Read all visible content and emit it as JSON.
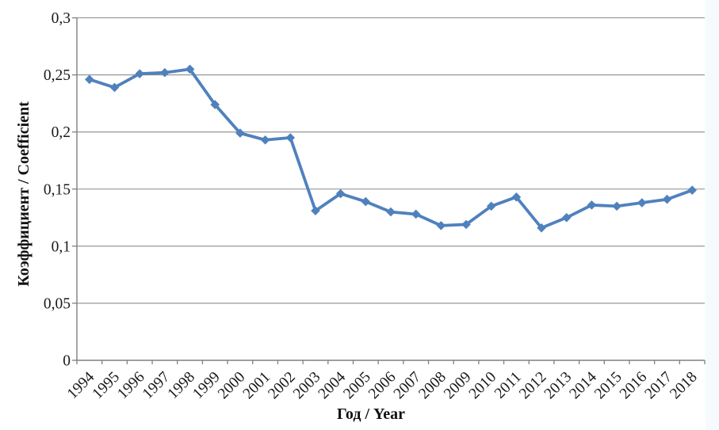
{
  "page": {
    "background": "#FFFFFF",
    "right_edge_tint": "#F5FAFD"
  },
  "chart_data": {
    "type": "line",
    "title": "",
    "xlabel": "Год / Year",
    "ylabel": "Коэффициент / Coefficient",
    "x": [
      "1994",
      "1995",
      "1996",
      "1997",
      "1998",
      "1999",
      "2000",
      "2001",
      "2002",
      "2003",
      "2004",
      "2005",
      "2006",
      "2007",
      "2008",
      "2009",
      "2010",
      "2011",
      "2012",
      "2013",
      "2014",
      "2015",
      "2016",
      "2017",
      "2018"
    ],
    "values": [
      0.246,
      0.239,
      0.251,
      0.252,
      0.255,
      0.224,
      0.199,
      0.193,
      0.195,
      0.131,
      0.146,
      0.139,
      0.13,
      0.128,
      0.118,
      0.119,
      0.135,
      0.143,
      0.116,
      0.125,
      0.136,
      0.135,
      0.138,
      0.141,
      0.149
    ],
    "ylim": [
      0,
      0.3
    ],
    "yticks": [
      {
        "value": 0,
        "label": "0"
      },
      {
        "value": 0.05,
        "label": "0,05"
      },
      {
        "value": 0.1,
        "label": "0,1"
      },
      {
        "value": 0.15,
        "label": "0,15"
      },
      {
        "value": 0.2,
        "label": "0,2"
      },
      {
        "value": 0.25,
        "label": "0,25"
      },
      {
        "value": 0.3,
        "label": "0,3"
      }
    ],
    "grid": true,
    "legend": "none",
    "marker": "diamond",
    "decimal_separator": ",",
    "x_label_rotation_deg": -45,
    "colors": {
      "line": "#4F81BD",
      "grid": "#8C8C8C",
      "axis": "#808080",
      "text": "#1A1A1A"
    }
  }
}
